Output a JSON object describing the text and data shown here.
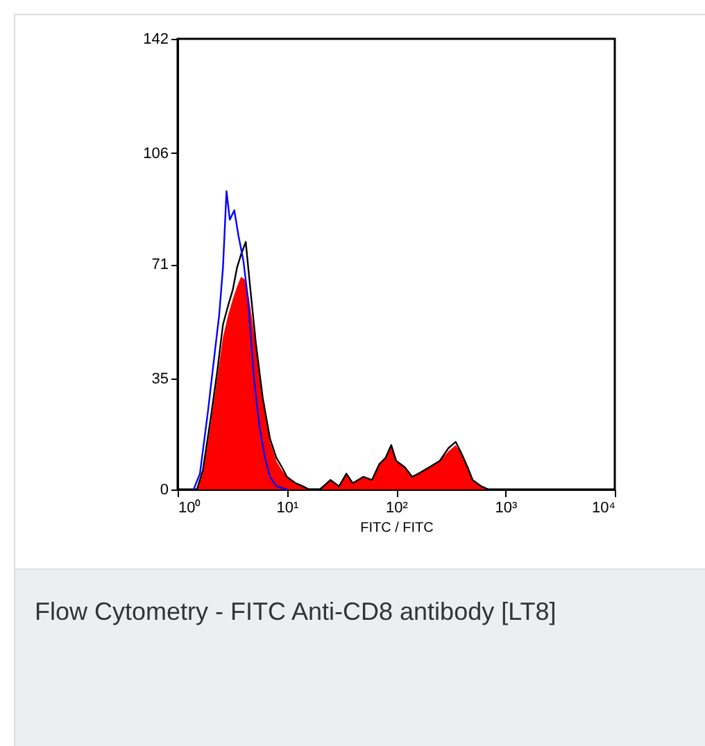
{
  "chart_data": {
    "type": "line",
    "xlabel": "FITC / FITC",
    "annotations": [
      "Flow Cytometry - FITC Anti-CD8 antibody [LT8]"
    ],
    "log": "x",
    "grid": false,
    "xlim": [
      1,
      10000
    ],
    "ylim": [
      0,
      142
    ],
    "xticks": [
      {
        "value": 1,
        "label": "10⁰"
      },
      {
        "value": 10,
        "label": "10¹"
      },
      {
        "value": 100,
        "label": "10²"
      },
      {
        "value": 1000,
        "label": "10³"
      },
      {
        "value": 10000,
        "label": "10⁴"
      }
    ],
    "yticks": [
      0,
      35,
      71,
      106,
      142
    ],
    "series": [
      {
        "type": "area",
        "color": "#ff0000",
        "x": [
          1.5,
          1.7,
          2.0,
          2.3,
          2.6,
          2.9,
          3.2,
          3.5,
          3.8,
          4.2,
          4.6,
          5.2,
          6,
          7,
          8,
          9,
          10,
          12,
          14,
          16,
          20,
          25,
          30,
          35,
          40,
          50,
          60,
          70,
          80,
          90,
          100,
          120,
          140,
          160,
          200,
          250,
          300,
          350,
          400,
          450,
          500,
          600,
          700
        ],
        "values": [
          0,
          5,
          20,
          35,
          48,
          55,
          60,
          64,
          67,
          66,
          58,
          45,
          28,
          15,
          9,
          6,
          4,
          2,
          1,
          0,
          0,
          3,
          1,
          5,
          2,
          4,
          3,
          8,
          10,
          14,
          9,
          7,
          4,
          5,
          7,
          9,
          12,
          14,
          11,
          7,
          3,
          1,
          0
        ]
      },
      {
        "color": "#000000",
        "x": [
          1.5,
          1.7,
          2.0,
          2.3,
          2.6,
          2.9,
          3.2,
          3.5,
          3.8,
          4.2,
          4.6,
          5.2,
          6,
          7,
          8,
          9,
          10,
          12,
          14,
          16,
          20,
          25,
          30,
          35,
          40,
          50,
          60,
          70,
          80,
          90,
          100,
          120,
          140,
          160,
          200,
          250,
          300,
          350,
          400,
          450,
          500,
          600,
          700
        ],
        "values": [
          0,
          6,
          22,
          37,
          52,
          58,
          63,
          70,
          74,
          78,
          64,
          46,
          29,
          16,
          10,
          7,
          4,
          2,
          1,
          0,
          0,
          3,
          1,
          5,
          2,
          4,
          3,
          8,
          10,
          14,
          9,
          7,
          4,
          5,
          7,
          9,
          13,
          15,
          11,
          7,
          3,
          1,
          0
        ]
      },
      {
        "color": "#0000ff",
        "x": [
          1.4,
          1.6,
          1.9,
          2.1,
          2.4,
          2.6,
          2.8,
          3.0,
          3.3,
          3.6,
          4.0,
          4.4,
          5.0,
          5.6,
          6.3,
          7,
          8,
          10
        ],
        "values": [
          0,
          5,
          25,
          38,
          55,
          70,
          94,
          85,
          88,
          80,
          72,
          60,
          35,
          20,
          10,
          4,
          1,
          0
        ]
      }
    ]
  }
}
